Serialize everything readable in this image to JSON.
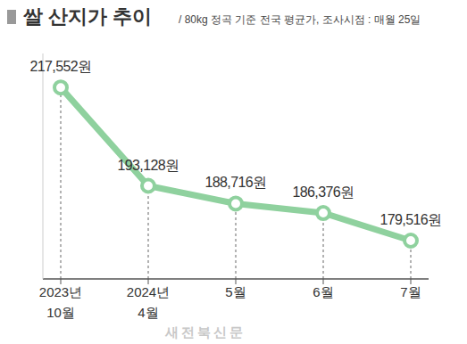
{
  "chart_data": {
    "type": "line",
    "title": "쌀 산지가 추이",
    "subtitle": "/ 80kg 정곡 기준 전국 평균가, 조사시점 : 매월 25일",
    "categories": [
      "2023년 10월",
      "2024년 4월",
      "5월",
      "6월",
      "7월"
    ],
    "values": [
      217552,
      193128,
      188716,
      186376,
      179516
    ],
    "value_labels": [
      "217,552원",
      "193,128원",
      "188,716원",
      "186,376원",
      "179,516원"
    ],
    "color": "#8fd19e",
    "marker": "circle",
    "line_style": "solid",
    "data_labels": true,
    "tick_labels": "x",
    "grid": false,
    "ylim": [
      170000,
      226000
    ],
    "annotations": [
      "새전북신문"
    ]
  }
}
